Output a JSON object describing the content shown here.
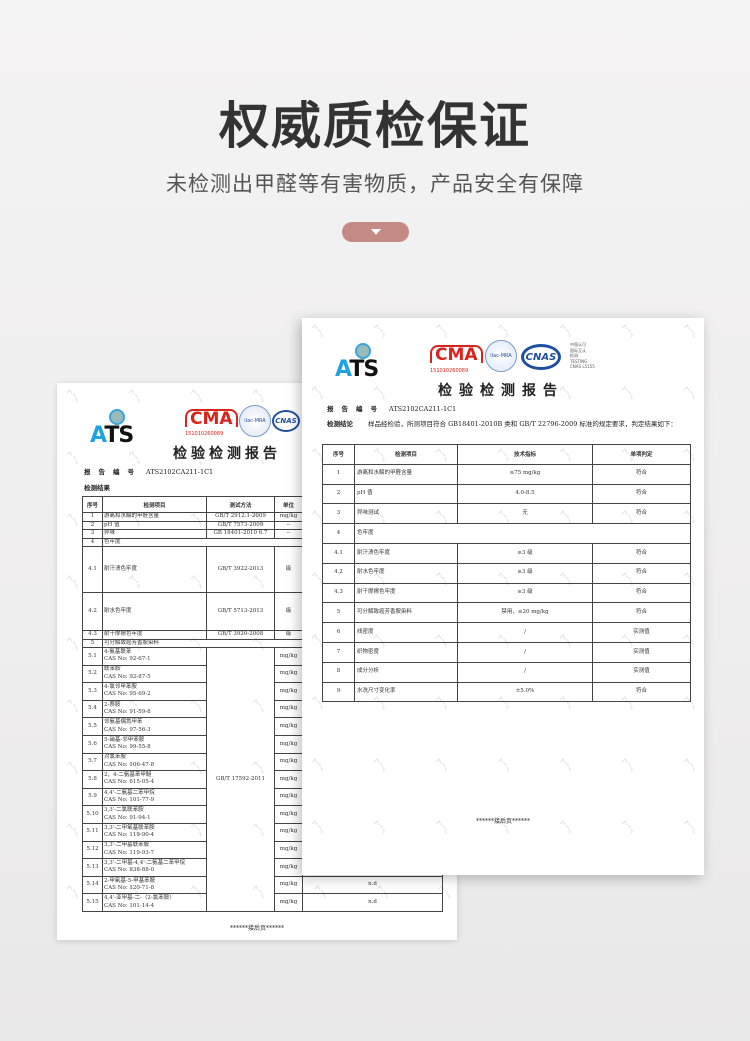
{
  "header": {
    "title": "权威质检保证",
    "subtitle": "未检测出甲醛等有害物质，产品安全有保障"
  },
  "colors": {
    "pill": "#c48a84",
    "cma": "#d8241c",
    "ats_blue": "#1fa3e0",
    "cnas": "#1f4fa0"
  },
  "report": {
    "watermark": "ATS",
    "logo": "ATS",
    "cma": "CMA",
    "cma_no": "151010260089",
    "ilac": "ilac-MRA",
    "cnas": "CNAS",
    "cnas_text": "中国认可\n国际互认\n检测\nTESTING\nCNAS L5155",
    "title": "检验检测报告",
    "no_label": "报告编号",
    "no_value": "ATS2102CA211-1C1",
    "conclusion_label": "检测结论",
    "conclusion": "样品经检验，所测项目符合 GB18401-2010B 类和 GB/T 22796-2009 标准的规定要求，判定结果如下：",
    "results_label": "检测结果",
    "footer": "******接后页******"
  },
  "right_table": {
    "headers": [
      "序号",
      "检测项目",
      "技术指标",
      "单项判定"
    ],
    "rows": [
      [
        "1",
        "游离和水解的甲醛含量",
        "≤75 mg/kg",
        "符合"
      ],
      [
        "2",
        "pH 值",
        "4.0-8.5",
        "符合"
      ],
      [
        "3",
        "异味测试",
        "无",
        "符合"
      ],
      [
        "4",
        "色牢度",
        "",
        ""
      ],
      [
        "4.1",
        "耐汗渍色牢度",
        "≥3 级",
        "符合"
      ],
      [
        "4.2",
        "耐水色牢度",
        "≥3 级",
        "符合"
      ],
      [
        "4.3",
        "耐干摩擦色牢度",
        "≥3 级",
        "符合"
      ],
      [
        "5",
        "可分解致癌芳香胺染料",
        "禁用，≤20 mg/kg",
        "符合"
      ],
      [
        "6",
        "线密度",
        "/",
        "实测值"
      ],
      [
        "7",
        "织物密度",
        "/",
        "实测值"
      ],
      [
        "8",
        "成分分析",
        "/",
        "实测值"
      ],
      [
        "9",
        "水洗尺寸变化率",
        "±5.0%",
        "符合"
      ]
    ]
  },
  "left_table": {
    "headers": [
      "序号",
      "检测项目",
      "测试方法",
      "单位"
    ],
    "rows": [
      [
        "1",
        "游离和水解的甲醛含量",
        "GB/T 2912.1-2009",
        "mg/kg",
        ""
      ],
      [
        "2",
        "pH 值",
        "GB/T 7573-2009",
        "--",
        ""
      ],
      [
        "3",
        "异味",
        "GB 18401-2010 6.7",
        "--",
        ""
      ],
      [
        "4",
        "色牢度",
        "",
        "",
        ""
      ],
      [
        "4.1",
        "耐汗渍色牢度",
        "GB/T 3922-2013",
        "级",
        ""
      ],
      [
        "4.2",
        "耐水色牢度",
        "GB/T 5713-2013",
        "级",
        ""
      ],
      [
        "4.3",
        "耐干摩擦色牢度",
        "GB/T 3920-2008",
        "级",
        ""
      ],
      [
        "5",
        "可分解致癌芳香胺染料",
        "",
        "",
        ""
      ]
    ],
    "amine_method": "GB/T 17592-2011",
    "amines": [
      [
        "5.1",
        "4-氨基联苯",
        "CAS No: 92-67-1",
        "mg/kg",
        ""
      ],
      [
        "5.2",
        "联苯胺",
        "CAS No: 92-87-5",
        "mg/kg",
        ""
      ],
      [
        "5.3",
        "4-氯邻甲苯胺",
        "CAS No: 95-69-2",
        "mg/kg",
        ""
      ],
      [
        "5.4",
        "2-萘胺",
        "CAS No: 91-59-8",
        "mg/kg",
        ""
      ],
      [
        "5.5",
        "邻氨基偶氮甲苯",
        "CAS No: 97-56-3",
        "mg/kg",
        ""
      ],
      [
        "5.6",
        "5-硝基-邻甲苯胺",
        "CAS No: 99-55-8",
        "mg/kg",
        ""
      ],
      [
        "5.7",
        "对氯苯胺",
        "CAS No: 106-47-8",
        "mg/kg",
        ""
      ],
      [
        "5.8",
        "2，4-二氨基苯甲醚",
        "CAS No: 615-05-4",
        "mg/kg",
        ""
      ],
      [
        "5.9",
        "4,4'-二氨基二苯甲烷",
        "CAS No: 101-77-9",
        "mg/kg",
        ""
      ],
      [
        "5.10",
        "3,3'-二氯联苯胺",
        "CAS No: 91-94-1",
        "mg/kg",
        ""
      ],
      [
        "5.11",
        "3,3'-二甲氧基联苯胺",
        "CAS No: 119-90-4",
        "mg/kg",
        ""
      ],
      [
        "5.12",
        "3,3'-二甲基联苯胺",
        "CAS No: 119-93-7",
        "mg/kg",
        ""
      ],
      [
        "5.13",
        "3,3'-二甲基-4,4'-二氨基二苯甲烷",
        "CAS No: 838-88-0",
        "mg/kg",
        "n.d"
      ],
      [
        "5.14",
        "2-甲氧基-5-甲基苯胺",
        "CAS No: 120-71-8",
        "mg/kg",
        "n.d"
      ],
      [
        "5.15",
        "4,4'-亚甲基-二-（2-氯苯胺）",
        "CAS No: 101-14-4",
        "mg/kg",
        "n.d"
      ]
    ]
  }
}
